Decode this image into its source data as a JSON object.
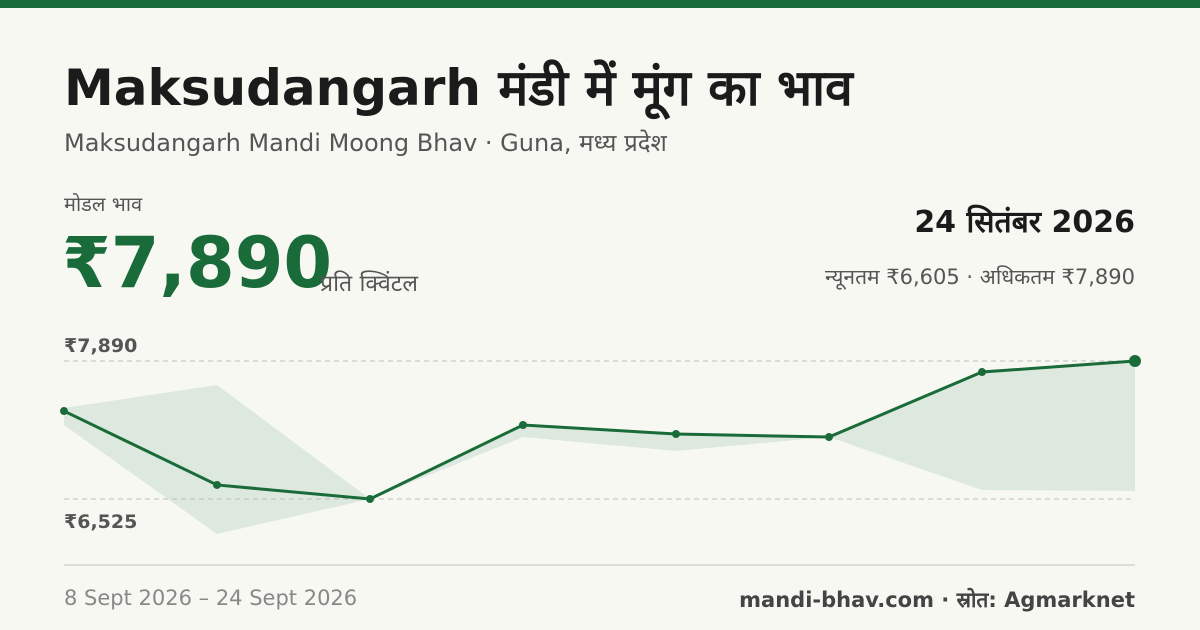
{
  "header": {
    "title": "Maksudangarh मंडी में मूंग का भाव",
    "subtitle": "Maksudangarh Mandi Moong Bhav · Guna, मध्य प्रदेश",
    "price_caption": "मोडल भाव",
    "price": "₹7,890",
    "price_unit": "प्रति क्विंटल",
    "date": "24 सितंबर 2026",
    "min_max": "न्यूनतम ₹6,605 · अधिकतम ₹7,890"
  },
  "chart_data": {
    "type": "line",
    "color": "#1a6b3a",
    "band_color": "#dde8df",
    "values": [
      7395,
      6664,
      6525,
      7257,
      7168,
      7138,
      7781,
      7890
    ],
    "range": {
      "min": [
        7257,
        6179,
        6525,
        7138,
        7000,
        7138,
        6614,
        6605
      ],
      "max": [
        7425,
        7653,
        6525,
        7257,
        7168,
        7138,
        7781,
        7890
      ]
    },
    "ylim": [
      6525,
      7890
    ],
    "yticks": [
      {
        "value": 7890,
        "label": "₹7,890"
      },
      {
        "value": 6525,
        "label": "₹6,525"
      }
    ],
    "grid": true
  },
  "footer": {
    "range": "8 Sept 2026 – 24 Sept 2026",
    "source": "mandi-bhav.com · स्रोत: Agmarknet"
  }
}
